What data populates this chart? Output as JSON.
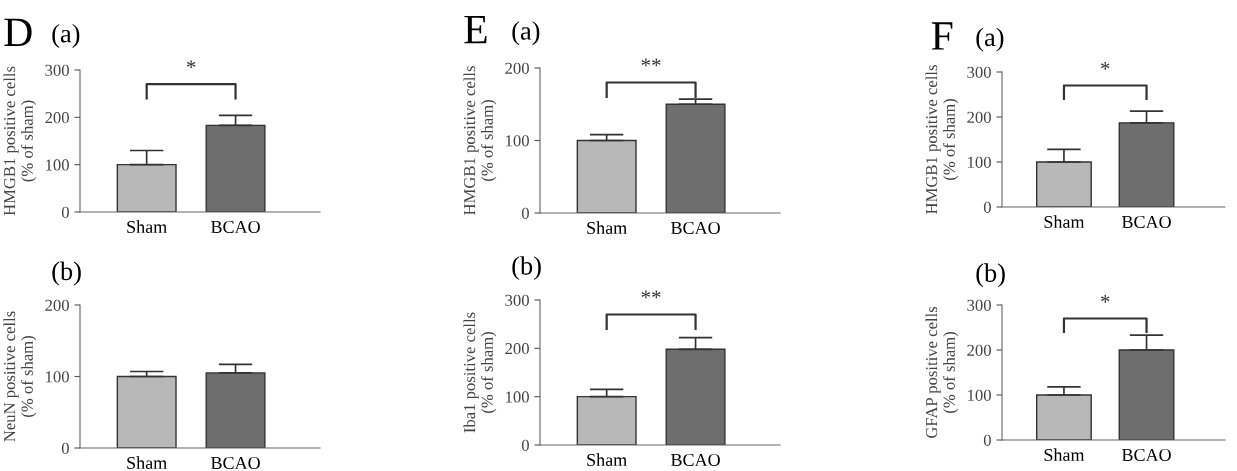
{
  "chart_data": [
    {
      "type": "bar",
      "title": "D",
      "subtitle": "(a)",
      "ylabel": "HMGB1 positive cells\n(% of sham)",
      "categories": [
        "Sham",
        "BCAO"
      ],
      "values": [
        100,
        183
      ],
      "errors": [
        [
          100,
          130
        ],
        [
          183,
          204
        ]
      ],
      "colors": [
        "#b8b8b8",
        "#6e6e6e"
      ],
      "ylim": [
        0,
        300
      ],
      "yticks": [
        0,
        100,
        200,
        300
      ],
      "grid": false,
      "legend": false,
      "annotations": [
        "*"
      ]
    },
    {
      "type": "bar",
      "title": "(b)",
      "ylabel": "NeuN positive cells\n(% of sham)",
      "categories": [
        "Sham",
        "BCAO"
      ],
      "values": [
        100,
        105
      ],
      "errors": [
        [
          100,
          107
        ],
        [
          105,
          117
        ]
      ],
      "colors": [
        "#b8b8b8",
        "#6e6e6e"
      ],
      "ylim": [
        0,
        200
      ],
      "yticks": [
        0,
        100,
        200
      ],
      "grid": false,
      "legend": false
    },
    {
      "type": "bar",
      "title": "E",
      "subtitle": "(a)",
      "ylabel": "HMGB1 positive cells\n(% of sham)",
      "categories": [
        "Sham",
        "BCAO"
      ],
      "values": [
        100,
        150
      ],
      "errors": [
        [
          100,
          108
        ],
        [
          150,
          157
        ]
      ],
      "colors": [
        "#b8b8b8",
        "#6e6e6e"
      ],
      "ylim": [
        0,
        200
      ],
      "yticks": [
        0,
        100,
        200
      ],
      "grid": false,
      "legend": false,
      "annotations": [
        "**"
      ]
    },
    {
      "type": "bar",
      "title": "(b)",
      "ylabel": "Iba1 positive cells\n(% of sham)",
      "categories": [
        "Sham",
        "BCAO"
      ],
      "values": [
        100,
        198
      ],
      "errors": [
        [
          100,
          115
        ],
        [
          198,
          222
        ]
      ],
      "colors": [
        "#b8b8b8",
        "#6e6e6e"
      ],
      "ylim": [
        0,
        300
      ],
      "yticks": [
        0,
        100,
        200,
        300
      ],
      "grid": false,
      "legend": false,
      "annotations": [
        "**"
      ]
    },
    {
      "type": "bar",
      "title": "F",
      "subtitle": "(a)",
      "ylabel": "HMGB1 positive cells\n(% of sham)",
      "categories": [
        "Sham",
        "BCAO"
      ],
      "values": [
        100,
        187
      ],
      "errors": [
        [
          100,
          128
        ],
        [
          187,
          213
        ]
      ],
      "colors": [
        "#b8b8b8",
        "#6e6e6e"
      ],
      "ylim": [
        0,
        300
      ],
      "yticks": [
        0,
        100,
        200,
        300
      ],
      "grid": false,
      "legend": false,
      "annotations": [
        "*"
      ]
    },
    {
      "type": "bar",
      "title": "(b)",
      "ylabel": "GFAP positive cells\n(% of sham)",
      "categories": [
        "Sham",
        "BCAO"
      ],
      "values": [
        100,
        200
      ],
      "errors": [
        [
          100,
          118
        ],
        [
          200,
          233
        ]
      ],
      "colors": [
        "#b8b8b8",
        "#6e6e6e"
      ],
      "ylim": [
        0,
        300
      ],
      "yticks": [
        0,
        100,
        200,
        300
      ],
      "grid": false,
      "legend": false,
      "annotations": [
        "*"
      ]
    }
  ]
}
